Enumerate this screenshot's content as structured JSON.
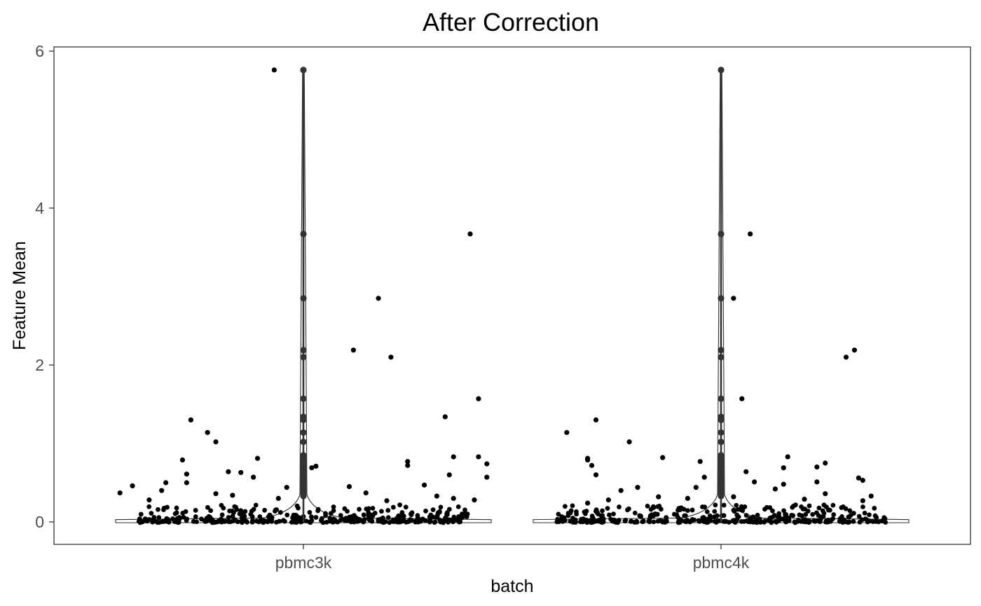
{
  "chart_data": {
    "type": "violin",
    "title": "After Correction",
    "xlabel": "batch",
    "ylabel": "Feature Mean",
    "categories": [
      "pbmc3k",
      "pbmc4k"
    ],
    "ylim": [
      -0.3,
      6.1
    ],
    "yticks": [
      0,
      2,
      4,
      6
    ],
    "grid": false,
    "legend": "none",
    "colors": {
      "points": "#000000",
      "outline": "#333333",
      "text": "#4d4d4d"
    },
    "groups": [
      {
        "name": "pbmc3k",
        "jitter_points": [
          {
            "x": -0.07,
            "y": 5.76
          },
          {
            "x": 0.4,
            "y": 3.67
          },
          {
            "x": 0.18,
            "y": 2.85
          },
          {
            "x": 0.12,
            "y": 2.19
          },
          {
            "x": 0.21,
            "y": 2.1
          },
          {
            "x": 0.42,
            "y": 1.57
          },
          {
            "x": 0.34,
            "y": 1.34
          },
          {
            "x": -0.27,
            "y": 1.3
          },
          {
            "x": -0.23,
            "y": 1.14
          },
          {
            "x": -0.21,
            "y": 1.02
          },
          {
            "x": -0.11,
            "y": 0.81
          },
          {
            "x": 0.36,
            "y": 0.83
          },
          {
            "x": -0.29,
            "y": 0.79
          },
          {
            "x": 0.42,
            "y": 0.83
          },
          {
            "x": 0.25,
            "y": 0.77
          },
          {
            "x": 0.25,
            "y": 0.72
          },
          {
            "x": 0.44,
            "y": 0.74
          },
          {
            "x": -0.18,
            "y": 0.64
          },
          {
            "x": -0.15,
            "y": 0.63
          },
          {
            "x": -0.28,
            "y": 0.61
          },
          {
            "x": 0.35,
            "y": 0.6
          },
          {
            "x": -0.12,
            "y": 0.57
          },
          {
            "x": 0.44,
            "y": 0.57
          },
          {
            "x": -0.33,
            "y": 0.5
          },
          {
            "x": -0.28,
            "y": 0.5
          },
          {
            "x": 0.03,
            "y": 0.71
          },
          {
            "x": 0.02,
            "y": 0.69
          },
          {
            "x": 0.11,
            "y": 0.45
          },
          {
            "x": 0.29,
            "y": 0.47
          },
          {
            "x": -0.41,
            "y": 0.46
          },
          {
            "x": -0.34,
            "y": 0.4
          },
          {
            "x": -0.44,
            "y": 0.37
          },
          {
            "x": 0.15,
            "y": 0.37
          },
          {
            "x": -0.21,
            "y": 0.36
          },
          {
            "x": -0.17,
            "y": 0.34
          },
          {
            "x": -0.04,
            "y": 0.44
          },
          {
            "x": 0.32,
            "y": 0.33
          },
          {
            "x": 0.36,
            "y": 0.3
          },
          {
            "x": -0.06,
            "y": 0.3
          },
          {
            "x": -0.37,
            "y": 0.28
          },
          {
            "x": 0.2,
            "y": 0.27
          },
          {
            "x": 0.41,
            "y": 0.28
          }
        ]
      },
      {
        "name": "pbmc4k",
        "jitter_points": [
          {
            "x": 0.07,
            "y": 3.67
          },
          {
            "x": 0.03,
            "y": 2.85
          },
          {
            "x": 0.32,
            "y": 2.19
          },
          {
            "x": 0.3,
            "y": 2.1
          },
          {
            "x": 0.05,
            "y": 1.57
          },
          {
            "x": -0.3,
            "y": 1.3
          },
          {
            "x": -0.37,
            "y": 1.14
          },
          {
            "x": -0.22,
            "y": 1.02
          },
          {
            "x": -0.14,
            "y": 0.82
          },
          {
            "x": -0.32,
            "y": 0.81
          },
          {
            "x": -0.32,
            "y": 0.79
          },
          {
            "x": 0.16,
            "y": 0.83
          },
          {
            "x": 0.15,
            "y": 0.69
          },
          {
            "x": 0.25,
            "y": 0.75
          },
          {
            "x": 0.23,
            "y": 0.7
          },
          {
            "x": -0.31,
            "y": 0.72
          },
          {
            "x": -0.05,
            "y": 0.77
          },
          {
            "x": 0.06,
            "y": 0.64
          },
          {
            "x": -0.3,
            "y": 0.6
          },
          {
            "x": -0.04,
            "y": 0.57
          },
          {
            "x": 0.33,
            "y": 0.56
          },
          {
            "x": 0.34,
            "y": 0.53
          },
          {
            "x": 0.08,
            "y": 0.51
          },
          {
            "x": 0.15,
            "y": 0.48
          },
          {
            "x": 0.23,
            "y": 0.51
          },
          {
            "x": -0.06,
            "y": 0.44
          },
          {
            "x": -0.2,
            "y": 0.44
          },
          {
            "x": -0.24,
            "y": 0.4
          },
          {
            "x": 0.13,
            "y": 0.42
          },
          {
            "x": -0.15,
            "y": 0.32
          },
          {
            "x": 0.03,
            "y": 0.32
          },
          {
            "x": 0.25,
            "y": 0.36
          },
          {
            "x": -0.27,
            "y": 0.28
          },
          {
            "x": 0.36,
            "y": 0.33
          },
          {
            "x": 0.2,
            "y": 0.29
          },
          {
            "x": -0.08,
            "y": 0.3
          },
          {
            "x": -0.32,
            "y": 0.24
          },
          {
            "x": 0.34,
            "y": 0.27
          }
        ]
      }
    ],
    "center_column_values": [
      5.76,
      3.67,
      2.85,
      2.19,
      2.1,
      1.57,
      1.34,
      1.3,
      1.14,
      1.02,
      0.85,
      0.81,
      0.79,
      0.77,
      0.74,
      0.72,
      0.69,
      0.66,
      0.63,
      0.6,
      0.57,
      0.54,
      0.51,
      0.48,
      0.45,
      0.42,
      0.39,
      0.36,
      0.33
    ]
  }
}
